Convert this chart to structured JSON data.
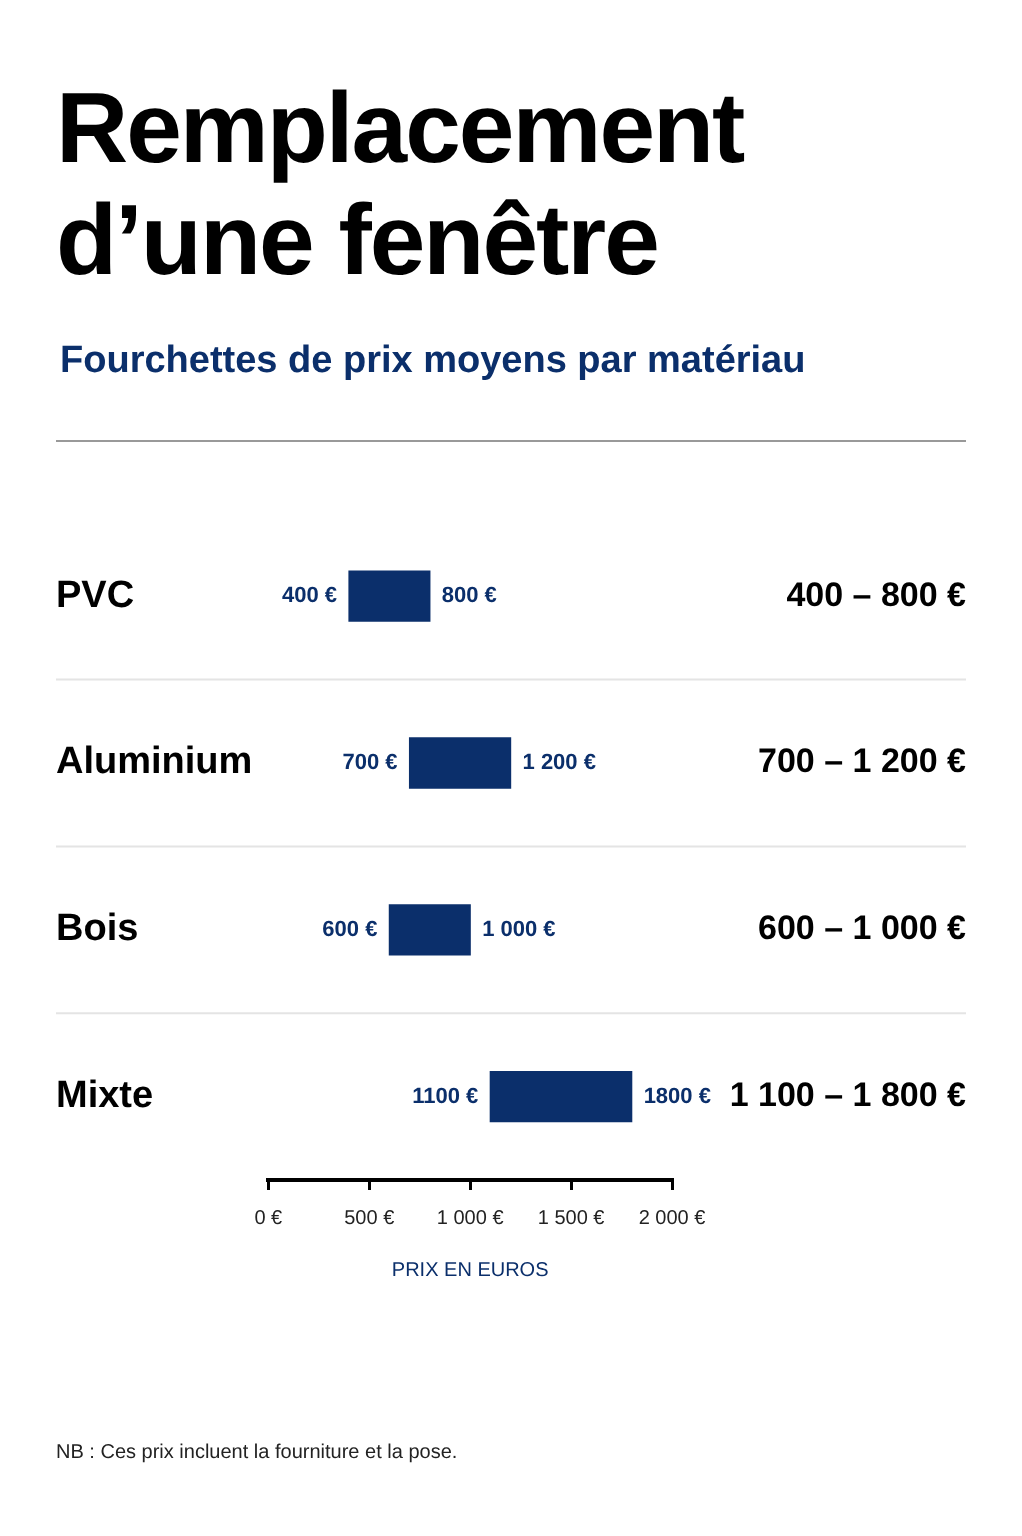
{
  "chart_data": {
    "type": "bar",
    "orientation": "horizontal",
    "title": "Remplacement d’une fenêtre",
    "subtitle": "Fourchettes de prix moyens par matériau",
    "xlabel": "PRIX EN EUROS",
    "categories": [
      "PVC",
      "Aluminium",
      "Bois",
      "Mixte"
    ],
    "base": [
      400,
      700,
      600,
      1100
    ],
    "values": [
      400,
      500,
      400,
      700
    ],
    "color": "#0b2f6b",
    "xlim": [
      0,
      2000
    ],
    "xticks": [
      {
        "value": 0,
        "label": "0 €"
      },
      {
        "value": 500,
        "label": "500 €"
      },
      {
        "value": 1000,
        "label": "1 000 €"
      },
      {
        "value": 1500,
        "label": "1 500 €"
      },
      {
        "value": 2000,
        "label": "2 000 €"
      }
    ],
    "grid": "y",
    "legend": false,
    "annotations": [
      {
        "text": "400 €",
        "x": 400,
        "y": "PVC"
      },
      {
        "text": "800 €",
        "x": 800,
        "y": "PVC"
      },
      {
        "text": "700 €",
        "x": 700,
        "y": "Aluminium"
      },
      {
        "text": "1 200 €",
        "x": 1200,
        "y": "Aluminium"
      },
      {
        "text": "600 €",
        "x": 600,
        "y": "Bois"
      },
      {
        "text": "1 000 €",
        "x": 1000,
        "y": "Bois"
      },
      {
        "text": "1100 €",
        "x": 1100,
        "y": "Mixte"
      },
      {
        "text": "1800 €",
        "x": 1800,
        "y": "Mixte"
      },
      "400 – 800 €",
      "700 – 1 200 €",
      "600 – 1 000 €",
      "1 100 – 1 800 €",
      "NB : Ces prix incluent la fourniture et la pose."
    ]
  }
}
